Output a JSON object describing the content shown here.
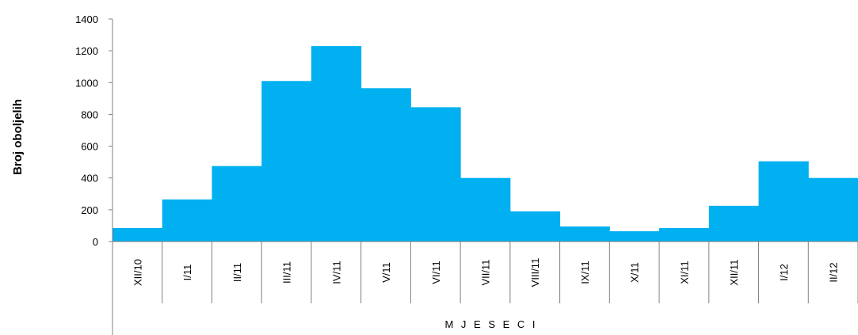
{
  "chart_data": {
    "type": "bar",
    "title": "",
    "xlabel": "M J E S E C I",
    "ylabel": "Broj oboljelih",
    "categories": [
      "XII/10",
      "I/11",
      "II/11",
      "III/11",
      "IV/11",
      "V/11",
      "VI/11",
      "VII/11",
      "VIII/11",
      "IX/11",
      "X/11",
      "XI/11",
      "XII/11",
      "I/12",
      "II/12"
    ],
    "values": [
      85,
      265,
      475,
      1010,
      1230,
      965,
      845,
      400,
      190,
      95,
      65,
      85,
      225,
      505,
      400
    ],
    "ylim": [
      0,
      1400
    ],
    "yticks": [
      0,
      200,
      400,
      600,
      800,
      1000,
      1200,
      1400
    ],
    "grid": false,
    "legend": "none",
    "bar_color": "#00b0f0"
  }
}
